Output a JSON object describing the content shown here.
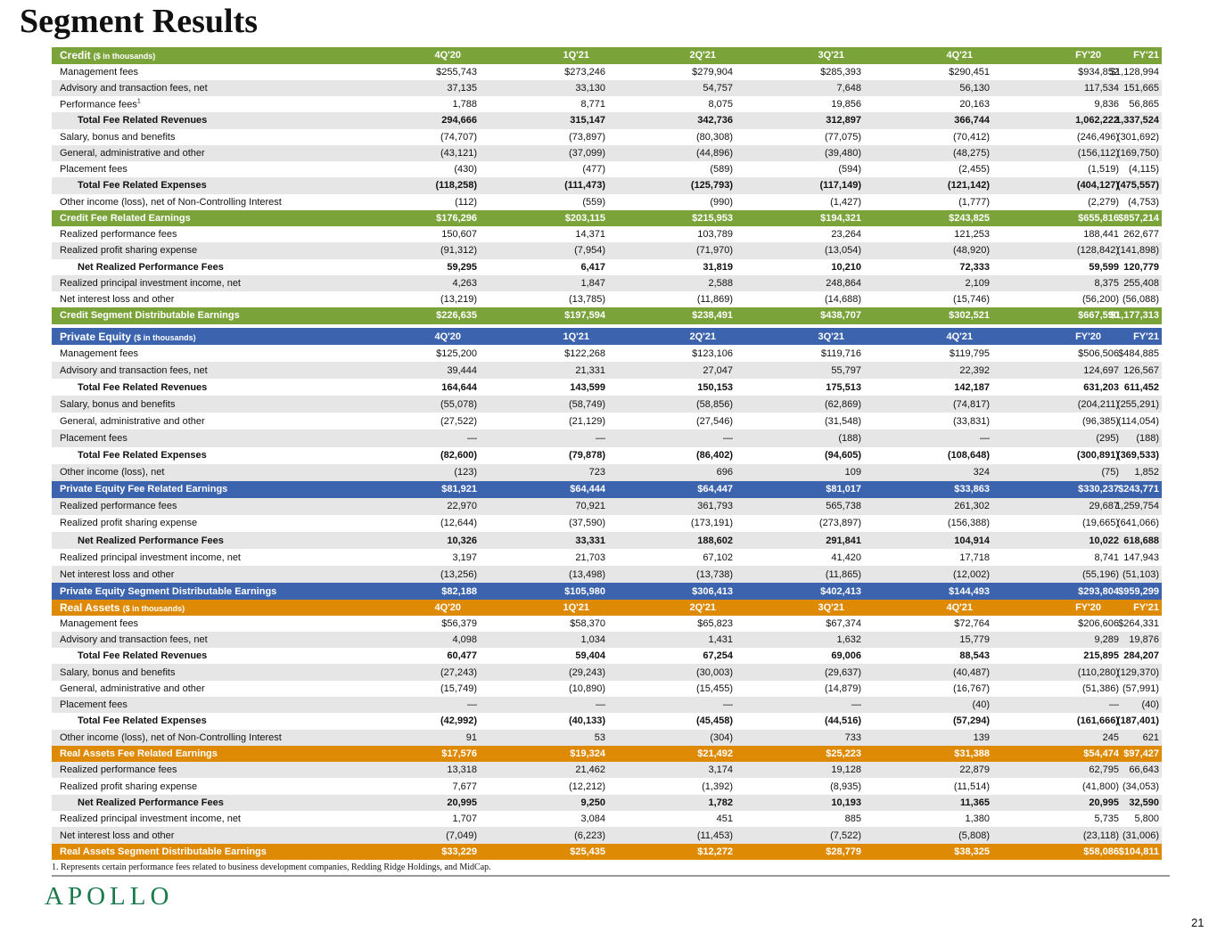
{
  "title": "Segment Results",
  "columns": [
    "4Q'20",
    "1Q'21",
    "2Q'21",
    "3Q'21",
    "4Q'21",
    "FY'20",
    "FY'21"
  ],
  "sections": [
    {
      "name": "Credit",
      "unit": "($ in thousands)",
      "color": "#7aa33a",
      "rows": [
        {
          "label": "Management fees",
          "type": "n",
          "values": [
            "$255,743",
            "$273,246",
            "$279,904",
            "$285,393",
            "$290,451",
            "$934,852",
            "$1,128,994"
          ]
        },
        {
          "label": "Advisory and transaction fees, net",
          "type": "n",
          "values": [
            "37,135",
            "33,130",
            "54,757",
            "7,648",
            "56,130",
            "117,534",
            "151,665"
          ]
        },
        {
          "label": "Performance fees",
          "sup": "1",
          "type": "n",
          "values": [
            "1,788",
            "8,771",
            "8,075",
            "19,856",
            "20,163",
            "9,836",
            "56,865"
          ]
        },
        {
          "label": "Total Fee Related Revenues",
          "type": "total",
          "values": [
            "294,666",
            "315,147",
            "342,736",
            "312,897",
            "366,744",
            "1,062,222",
            "1,337,524"
          ]
        },
        {
          "label": "Salary, bonus and benefits",
          "type": "n",
          "values": [
            "(74,707)",
            "(73,897)",
            "(80,308)",
            "(77,075)",
            "(70,412)",
            "(246,496)",
            "(301,692)"
          ]
        },
        {
          "label": "General, administrative and other",
          "type": "n",
          "values": [
            "(43,121)",
            "(37,099)",
            "(44,896)",
            "(39,480)",
            "(48,275)",
            "(156,112)",
            "(169,750)"
          ]
        },
        {
          "label": "Placement fees",
          "type": "n",
          "values": [
            "(430)",
            "(477)",
            "(589)",
            "(594)",
            "(2,455)",
            "(1,519)",
            "(4,115)"
          ]
        },
        {
          "label": "Total Fee Related Expenses",
          "type": "total",
          "values": [
            "(118,258)",
            "(111,473)",
            "(125,793)",
            "(117,149)",
            "(121,142)",
            "(404,127)",
            "(475,557)"
          ]
        },
        {
          "label": "Other income (loss), net of Non-Controlling Interest",
          "type": "n",
          "values": [
            "(112)",
            "(559)",
            "(990)",
            "(1,427)",
            "(1,777)",
            "(2,279)",
            "(4,753)"
          ]
        },
        {
          "label": "Credit Fee Related Earnings",
          "type": "hl",
          "values": [
            "$176,296",
            "$203,115",
            "$215,953",
            "$194,321",
            "$243,825",
            "$655,816",
            "$857,214"
          ]
        },
        {
          "label": "Realized performance fees",
          "type": "n",
          "values": [
            "150,607",
            "14,371",
            "103,789",
            "23,264",
            "121,253",
            "188,441",
            "262,677"
          ]
        },
        {
          "label": "Realized profit sharing expense",
          "type": "n",
          "values": [
            "(91,312)",
            "(7,954)",
            "(71,970)",
            "(13,054)",
            "(48,920)",
            "(128,842)",
            "(141,898)"
          ]
        },
        {
          "label": "Net Realized Performance Fees",
          "type": "total",
          "values": [
            "59,295",
            "6,417",
            "31,819",
            "10,210",
            "72,333",
            "59,599",
            "120,779"
          ]
        },
        {
          "label": "Realized principal investment income, net",
          "type": "n",
          "values": [
            "4,263",
            "1,847",
            "2,588",
            "248,864",
            "2,109",
            "8,375",
            "255,408"
          ]
        },
        {
          "label": "Net interest loss and other",
          "type": "n",
          "values": [
            "(13,219)",
            "(13,785)",
            "(11,869)",
            "(14,688)",
            "(15,746)",
            "(56,200)",
            "(56,088)"
          ]
        },
        {
          "label": "Credit Segment Distributable Earnings",
          "type": "hl",
          "values": [
            "$226,635",
            "$197,594",
            "$238,491",
            "$438,707",
            "$302,521",
            "$667,590",
            "$1,177,313"
          ]
        }
      ]
    },
    {
      "name": "Private Equity",
      "unit": "($ in thousands)",
      "color": "#3b63ae",
      "rows": [
        {
          "label": "Management fees",
          "type": "n",
          "values": [
            "$125,200",
            "$122,268",
            "$123,106",
            "$119,716",
            "$119,795",
            "$506,506",
            "$484,885"
          ]
        },
        {
          "label": "Advisory and transaction fees, net",
          "type": "n",
          "values": [
            "39,444",
            "21,331",
            "27,047",
            "55,797",
            "22,392",
            "124,697",
            "126,567"
          ]
        },
        {
          "label": "Total Fee Related Revenues",
          "type": "total",
          "values": [
            "164,644",
            "143,599",
            "150,153",
            "175,513",
            "142,187",
            "631,203",
            "611,452"
          ]
        },
        {
          "label": "Salary, bonus and benefits",
          "type": "n",
          "values": [
            "(55,078)",
            "(58,749)",
            "(58,856)",
            "(62,869)",
            "(74,817)",
            "(204,211)",
            "(255,291)"
          ]
        },
        {
          "label": "General, administrative and other",
          "type": "n",
          "values": [
            "(27,522)",
            "(21,129)",
            "(27,546)",
            "(31,548)",
            "(33,831)",
            "(96,385)",
            "(114,054)"
          ]
        },
        {
          "label": "Placement fees",
          "type": "n",
          "values": [
            "—",
            "—",
            "—",
            "(188)",
            "—",
            "(295)",
            "(188)"
          ]
        },
        {
          "label": "Total Fee Related Expenses",
          "type": "total",
          "values": [
            "(82,600)",
            "(79,878)",
            "(86,402)",
            "(94,605)",
            "(108,648)",
            "(300,891)",
            "(369,533)"
          ]
        },
        {
          "label": "Other income (loss), net",
          "type": "n",
          "values": [
            "(123)",
            "723",
            "696",
            "109",
            "324",
            "(75)",
            "1,852"
          ]
        },
        {
          "label": "Private Equity Fee Related Earnings",
          "type": "hl",
          "values": [
            "$81,921",
            "$64,444",
            "$64,447",
            "$81,017",
            "$33,863",
            "$330,237",
            "$243,771"
          ]
        },
        {
          "label": "Realized performance fees",
          "type": "n",
          "values": [
            "22,970",
            "70,921",
            "361,793",
            "565,738",
            "261,302",
            "29,687",
            "1,259,754"
          ]
        },
        {
          "label": "Realized profit sharing expense",
          "type": "n",
          "values": [
            "(12,644)",
            "(37,590)",
            "(173,191)",
            "(273,897)",
            "(156,388)",
            "(19,665)",
            "(641,066)"
          ]
        },
        {
          "label": "Net Realized Performance Fees",
          "type": "total",
          "values": [
            "10,326",
            "33,331",
            "188,602",
            "291,841",
            "104,914",
            "10,022",
            "618,688"
          ]
        },
        {
          "label": "Realized principal investment income, net",
          "type": "n",
          "values": [
            "3,197",
            "21,703",
            "67,102",
            "41,420",
            "17,718",
            "8,741",
            "147,943"
          ]
        },
        {
          "label": "Net interest loss and other",
          "type": "n",
          "values": [
            "(13,256)",
            "(13,498)",
            "(13,738)",
            "(11,865)",
            "(12,002)",
            "(55,196)",
            "(51,103)"
          ]
        },
        {
          "label": "Private Equity Segment Distributable Earnings",
          "type": "hl",
          "values": [
            "$82,188",
            "$105,980",
            "$306,413",
            "$402,413",
            "$144,493",
            "$293,804",
            "$959,299"
          ]
        }
      ]
    },
    {
      "name": "Real Assets",
      "unit": "($ in thousands)",
      "color": "#de8a05",
      "rows": [
        {
          "label": "Management fees",
          "type": "n",
          "values": [
            "$56,379",
            "$58,370",
            "$65,823",
            "$67,374",
            "$72,764",
            "$206,606",
            "$264,331"
          ]
        },
        {
          "label": "Advisory and transaction fees, net",
          "type": "n",
          "values": [
            "4,098",
            "1,034",
            "1,431",
            "1,632",
            "15,779",
            "9,289",
            "19,876"
          ]
        },
        {
          "label": "Total Fee Related Revenues",
          "type": "total",
          "values": [
            "60,477",
            "59,404",
            "67,254",
            "69,006",
            "88,543",
            "215,895",
            "284,207"
          ]
        },
        {
          "label": "Salary, bonus and benefits",
          "type": "n",
          "values": [
            "(27,243)",
            "(29,243)",
            "(30,003)",
            "(29,637)",
            "(40,487)",
            "(110,280)",
            "(129,370)"
          ]
        },
        {
          "label": "General, administrative and other",
          "type": "n",
          "values": [
            "(15,749)",
            "(10,890)",
            "(15,455)",
            "(14,879)",
            "(16,767)",
            "(51,386)",
            "(57,991)"
          ]
        },
        {
          "label": "Placement fees",
          "type": "n",
          "values": [
            "—",
            "—",
            "—",
            "—",
            "(40)",
            "—",
            "(40)"
          ]
        },
        {
          "label": "Total Fee Related Expenses",
          "type": "total",
          "values": [
            "(42,992)",
            "(40,133)",
            "(45,458)",
            "(44,516)",
            "(57,294)",
            "(161,666)",
            "(187,401)"
          ]
        },
        {
          "label": "Other income (loss), net of Non-Controlling Interest",
          "type": "n",
          "values": [
            "91",
            "53",
            "(304)",
            "733",
            "139",
            "245",
            "621"
          ]
        },
        {
          "label": "Real Assets Fee Related Earnings",
          "type": "hl",
          "values": [
            "$17,576",
            "$19,324",
            "$21,492",
            "$25,223",
            "$31,388",
            "$54,474",
            "$97,427"
          ]
        },
        {
          "label": "Realized performance fees",
          "type": "n",
          "values": [
            "13,318",
            "21,462",
            "3,174",
            "19,128",
            "22,879",
            "62,795",
            "66,643"
          ]
        },
        {
          "label": "Realized profit sharing expense",
          "type": "n",
          "values": [
            "7,677",
            "(12,212)",
            "(1,392)",
            "(8,935)",
            "(11,514)",
            "(41,800)",
            "(34,053)"
          ]
        },
        {
          "label": "Net Realized Performance Fees",
          "type": "total",
          "values": [
            "20,995",
            "9,250",
            "1,782",
            "10,193",
            "11,365",
            "20,995",
            "32,590"
          ]
        },
        {
          "label": "Realized principal investment income, net",
          "type": "n",
          "values": [
            "1,707",
            "3,084",
            "451",
            "885",
            "1,380",
            "5,735",
            "5,800"
          ]
        },
        {
          "label": "Net interest loss and other",
          "type": "n",
          "values": [
            "(7,049)",
            "(6,223)",
            "(11,453)",
            "(7,522)",
            "(5,808)",
            "(23,118)",
            "(31,006)"
          ]
        },
        {
          "label": "Real Assets Segment Distributable Earnings",
          "type": "hl",
          "values": [
            "$33,229",
            "$25,435",
            "$12,272",
            "$28,779",
            "$38,325",
            "$58,086",
            "$104,811"
          ]
        }
      ]
    }
  ],
  "footnote": "1. Represents certain performance fees related to business development companies, Redding Ridge Holdings, and MidCap.",
  "logo": "APOLLO",
  "page_number": "21"
}
